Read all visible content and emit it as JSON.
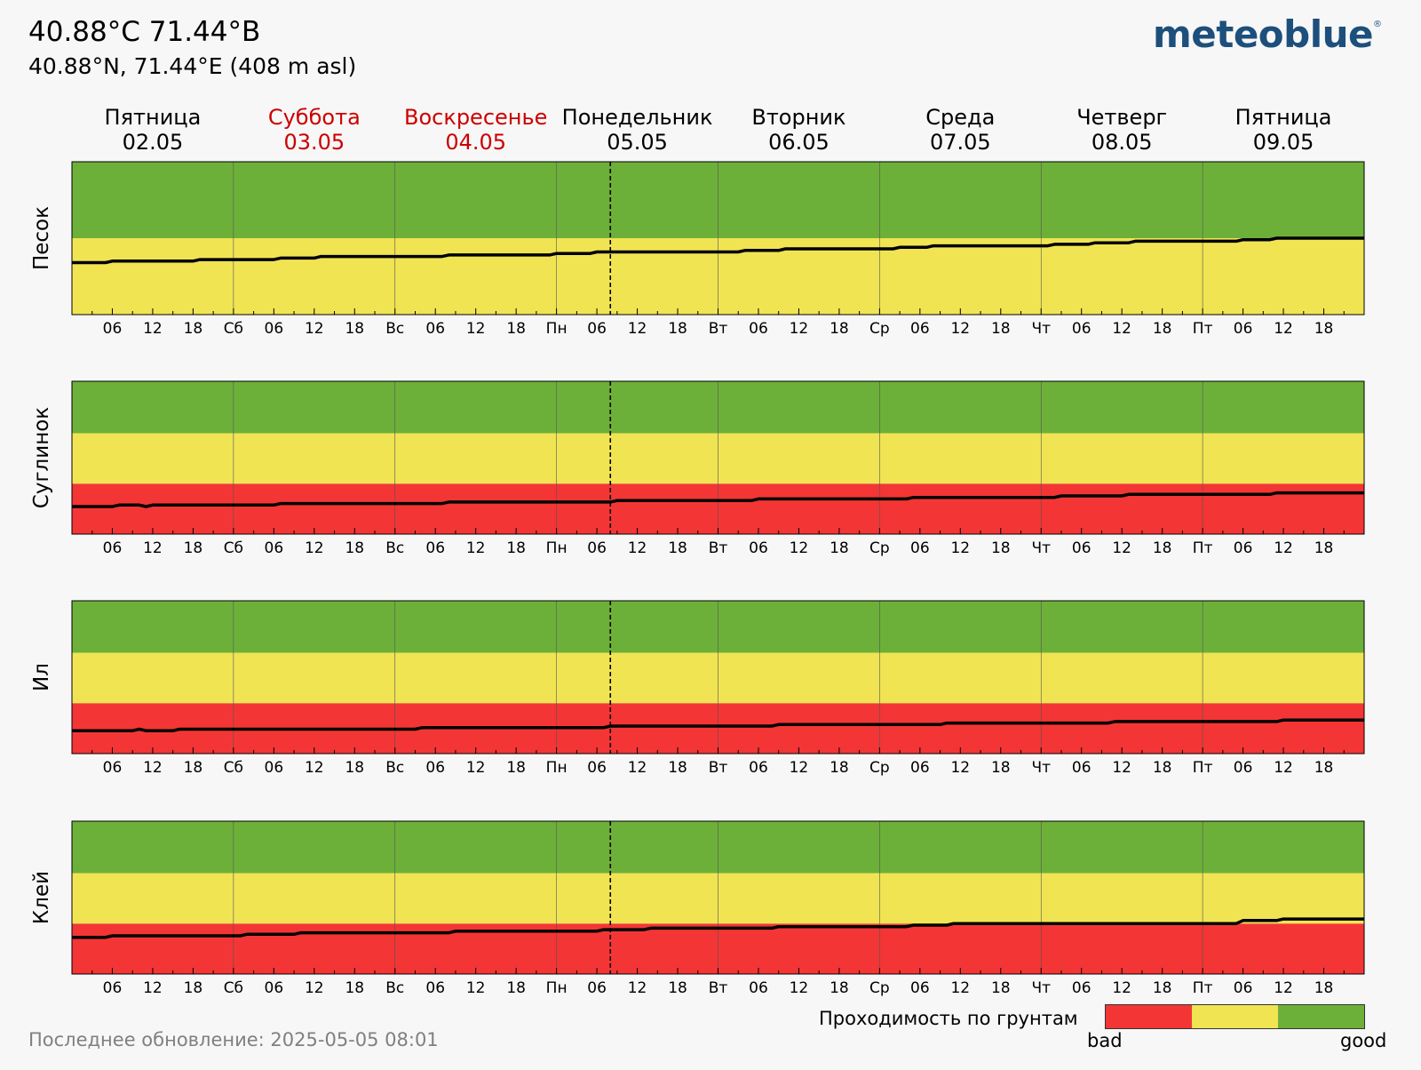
{
  "header": {
    "title": "40.88°C 71.44°B",
    "subtitle": "40.88°N, 71.44°E (408 m asl)",
    "logo": "meteoblue",
    "logo_mark": "®"
  },
  "days": [
    {
      "name": "Пятница",
      "date": "02.05",
      "weekend": false
    },
    {
      "name": "Суббота",
      "date": "03.05",
      "weekend": true
    },
    {
      "name": "Воскресенье",
      "date": "04.05",
      "weekend": true
    },
    {
      "name": "Понедельник",
      "date": "05.05",
      "weekend": false
    },
    {
      "name": "Вторник",
      "date": "06.05",
      "weekend": false
    },
    {
      "name": "Среда",
      "date": "07.05",
      "weekend": false
    },
    {
      "name": "Четверг",
      "date": "08.05",
      "weekend": false
    },
    {
      "name": "Пятница",
      "date": "09.05",
      "weekend": false
    }
  ],
  "tick_labels": [
    "",
    "06",
    "12",
    "18",
    "Сб",
    "06",
    "12",
    "18",
    "Вс",
    "06",
    "12",
    "18",
    "Пн",
    "06",
    "12",
    "18",
    "Вт",
    "06",
    "12",
    "18",
    "Ср",
    "06",
    "12",
    "18",
    "Чт",
    "06",
    "12",
    "18",
    "Пт",
    "06",
    "12",
    "18"
  ],
  "colors": {
    "bad": "#f43535",
    "medium": "#f0e453",
    "good": "#6db039",
    "line": "#000000",
    "background": "#f7f7f7"
  },
  "footer": {
    "updated": "Последнее обновление: 2025-05-05 08:01",
    "legend_title": "Проходимость по грунтам",
    "legend_bad": "bad",
    "legend_good": "good"
  },
  "chart_data": [
    {
      "type": "line",
      "ylabel": "Песок",
      "x_unit": "hours from 02.05 00:00",
      "xlim": [
        0,
        192
      ],
      "ylim": [
        0,
        100
      ],
      "now_hour": 80,
      "zones": [
        {
          "name": "bad",
          "from": 0,
          "to": 0
        },
        {
          "name": "medium",
          "from": 0,
          "to": 50
        },
        {
          "name": "good",
          "from": 50,
          "to": 100
        }
      ],
      "x": [
        0,
        5,
        6,
        18,
        19,
        30,
        31,
        36,
        37,
        48,
        49,
        55,
        56,
        71,
        72,
        77,
        78,
        99,
        100,
        105,
        106,
        122,
        123,
        127,
        128,
        145,
        146,
        151,
        152,
        157,
        158,
        173,
        174,
        178,
        179,
        192
      ],
      "y": [
        34,
        34,
        35,
        35,
        36,
        36,
        37,
        37,
        38,
        38,
        38,
        38,
        39,
        39,
        40,
        40,
        41,
        41,
        42,
        42,
        43,
        43,
        44,
        44,
        45,
        45,
        46,
        46,
        47,
        47,
        48,
        48,
        49,
        49,
        50,
        50
      ]
    },
    {
      "type": "line",
      "ylabel": "Суглинок",
      "x_unit": "hours from 02.05 00:00",
      "xlim": [
        0,
        192
      ],
      "ylim": [
        0,
        100
      ],
      "now_hour": 80,
      "zones": [
        {
          "name": "bad",
          "from": 0,
          "to": 33
        },
        {
          "name": "medium",
          "from": 33,
          "to": 66
        },
        {
          "name": "good",
          "from": 66,
          "to": 100
        }
      ],
      "x": [
        0,
        6,
        7,
        10,
        11,
        12,
        30,
        31,
        55,
        56,
        80,
        81,
        101,
        102,
        124,
        125,
        146,
        147,
        156,
        157,
        178,
        179,
        192
      ],
      "y": [
        18,
        18,
        19,
        19,
        18,
        19,
        19,
        20,
        20,
        21,
        21,
        22,
        22,
        23,
        23,
        24,
        24,
        25,
        25,
        26,
        26,
        27,
        27
      ]
    },
    {
      "type": "line",
      "ylabel": "Ил",
      "x_unit": "hours from 02.05 00:00",
      "xlim": [
        0,
        192
      ],
      "ylim": [
        0,
        100
      ],
      "now_hour": 80,
      "zones": [
        {
          "name": "bad",
          "from": 0,
          "to": 33
        },
        {
          "name": "medium",
          "from": 33,
          "to": 66
        },
        {
          "name": "good",
          "from": 66,
          "to": 100
        }
      ],
      "x": [
        0,
        9,
        10,
        11,
        15,
        16,
        51,
        52,
        79,
        80,
        104,
        105,
        129,
        130,
        154,
        155,
        179,
        180,
        192
      ],
      "y": [
        15,
        15,
        16,
        15,
        15,
        16,
        16,
        17,
        17,
        18,
        18,
        19,
        19,
        20,
        20,
        21,
        21,
        22,
        22
      ]
    },
    {
      "type": "line",
      "ylabel": "Клей",
      "x_unit": "hours from 02.05 00:00",
      "xlim": [
        0,
        192
      ],
      "ylim": [
        0,
        100
      ],
      "now_hour": 80,
      "zones": [
        {
          "name": "bad",
          "from": 0,
          "to": 33
        },
        {
          "name": "medium",
          "from": 33,
          "to": 66
        },
        {
          "name": "good",
          "from": 66,
          "to": 100
        }
      ],
      "x": [
        0,
        5,
        6,
        25,
        26,
        33,
        34,
        56,
        57,
        78,
        79,
        85,
        86,
        104,
        105,
        124,
        125,
        130,
        131,
        173,
        174,
        179,
        180,
        192
      ],
      "y": [
        24,
        24,
        25,
        25,
        26,
        26,
        27,
        27,
        28,
        28,
        29,
        29,
        30,
        30,
        31,
        31,
        32,
        32,
        33,
        33,
        35,
        35,
        36,
        36
      ]
    }
  ]
}
